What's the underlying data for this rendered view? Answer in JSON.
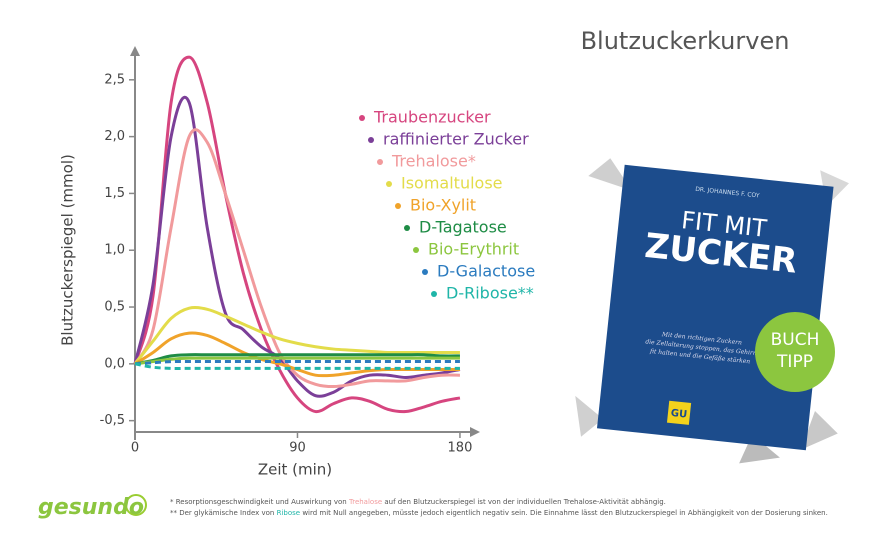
{
  "chart_data": {
    "type": "line",
    "title": "Blutzuckerkurven",
    "y_label": "Blutzuckerspiegel (mmol)",
    "x_label": "Zeit (min)",
    "x": [
      0,
      10,
      20,
      30,
      40,
      50,
      60,
      70,
      80,
      90,
      100,
      110,
      120,
      130,
      140,
      150,
      160,
      170,
      180
    ],
    "xlim": [
      0,
      190
    ],
    "xticks": [
      0,
      90,
      180
    ],
    "ylim": [
      -0.6,
      2.78
    ],
    "yticks": [
      {
        "value": -0.5,
        "label": "-0,5"
      },
      {
        "value": 0,
        "label": "0,0"
      },
      {
        "value": 0.5,
        "label": "0,5"
      },
      {
        "value": 1,
        "label": "1,0"
      },
      {
        "value": 1.5,
        "label": "1,5"
      },
      {
        "value": 2,
        "label": "2,0"
      },
      {
        "value": 2.5,
        "label": "2,5"
      }
    ],
    "series": [
      {
        "name": "Traubenzucker",
        "color": "#d6457f",
        "values": [
          0,
          0.6,
          2.3,
          2.7,
          2.3,
          1.5,
          0.8,
          0.3,
          -0.05,
          -0.3,
          -0.42,
          -0.35,
          -0.3,
          -0.33,
          -0.4,
          -0.42,
          -0.38,
          -0.33,
          -0.3
        ]
      },
      {
        "name": "raffinierter Zucker",
        "color": "#7b3f98",
        "values": [
          0,
          0.7,
          2.0,
          2.3,
          1.2,
          0.45,
          0.3,
          0.15,
          0.05,
          -0.15,
          -0.28,
          -0.25,
          -0.15,
          -0.1,
          -0.1,
          -0.12,
          -0.1,
          -0.08,
          -0.05
        ]
      },
      {
        "name": "Trehalose*",
        "color": "#f19a9c",
        "values": [
          0,
          0.3,
          1.2,
          2.0,
          1.95,
          1.5,
          1.0,
          0.5,
          0.1,
          -0.1,
          -0.18,
          -0.2,
          -0.18,
          -0.15,
          -0.15,
          -0.15,
          -0.12,
          -0.1,
          -0.1
        ]
      },
      {
        "name": "Isomaltulose",
        "color": "#e3dc4a",
        "values": [
          0,
          0.2,
          0.4,
          0.49,
          0.48,
          0.42,
          0.35,
          0.28,
          0.22,
          0.18,
          0.15,
          0.13,
          0.12,
          0.11,
          0.1,
          0.1,
          0.1,
          0.1,
          0.1
        ]
      },
      {
        "name": "Bio-Xylit",
        "color": "#f0a32a",
        "values": [
          0,
          0.1,
          0.22,
          0.27,
          0.25,
          0.18,
          0.1,
          0.04,
          0,
          -0.05,
          -0.1,
          -0.1,
          -0.08,
          -0.06,
          -0.05,
          -0.05,
          -0.05,
          -0.05,
          -0.05
        ]
      },
      {
        "name": "D-Tagatose",
        "color": "#1e8c45",
        "values": [
          0,
          0.03,
          0.07,
          0.08,
          0.08,
          0.08,
          0.08,
          0.08,
          0.08,
          0.08,
          0.08,
          0.08,
          0.08,
          0.08,
          0.08,
          0.08,
          0.08,
          0.07,
          0.07
        ]
      },
      {
        "name": "Bio-Erythrit",
        "color": "#8cc63f",
        "values": [
          0,
          0.02,
          0.04,
          0.05,
          0.05,
          0.05,
          0.05,
          0.05,
          0.05,
          0.05,
          0.05,
          0.05,
          0.05,
          0.05,
          0.05,
          0.05,
          0.05,
          0.05,
          0.05
        ]
      },
      {
        "name": "D-Galactose",
        "color": "#2b7bbf",
        "dashed": true,
        "values": [
          0,
          0.01,
          0.02,
          0.02,
          0.02,
          0.02,
          0.02,
          0.02,
          0.02,
          0.02,
          0.02,
          0.02,
          0.02,
          0.02,
          0.02,
          0.02,
          0.02,
          0.02,
          0.02
        ]
      },
      {
        "name": "D-Ribose**",
        "color": "#1fb5a8",
        "dashed": true,
        "values": [
          0,
          -0.03,
          -0.04,
          -0.04,
          -0.04,
          -0.04,
          -0.04,
          -0.04,
          -0.04,
          -0.04,
          -0.04,
          -0.04,
          -0.04,
          -0.04,
          -0.04,
          -0.04,
          -0.04,
          -0.04,
          -0.04
        ]
      }
    ]
  },
  "footnotes": [
    [
      "* Resorptionsgeschwindigkeit und Auswirkung von ",
      "Trehalose",
      " auf den Blutzuckerspiegel ist von der individuellen Trehalose-Aktivität abhängig."
    ],
    [
      "** Der glykämische Index von ",
      "Ribose",
      " wird mit Null angegeben, müsste jedoch eigentlich negativ sein. Die Einnahme lässt den Blutzuckerspiegel in Abhängigkeit von der Dosierung sinken."
    ]
  ],
  "logo": "gesundo",
  "book": {
    "author": "DR. JOHANNES F. COY",
    "title1": "FIT MIT",
    "title2": "ZUCKER",
    "subtitle": [
      "Mit den richtigen Zuckern",
      "die Zellalterung stoppen, das Gehirn",
      "fit halten und die Gefäße stärken"
    ],
    "publisher": "GU",
    "badge": [
      "BUCH",
      "TIPP"
    ]
  }
}
